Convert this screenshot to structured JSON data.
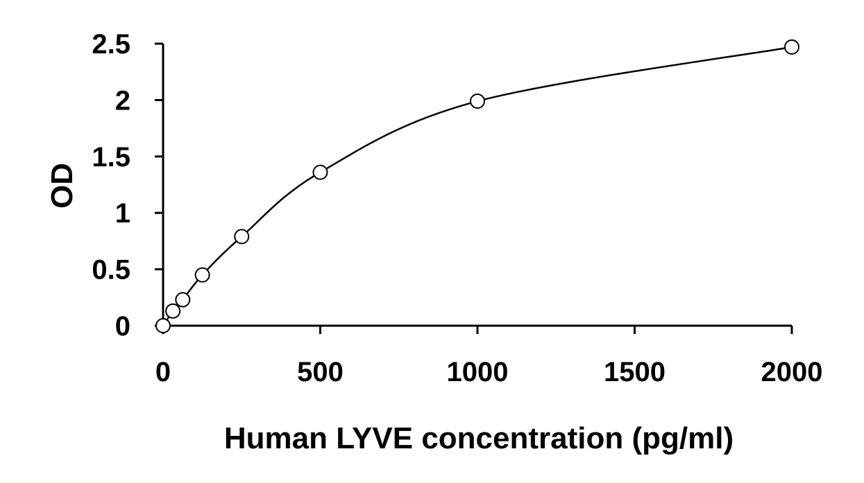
{
  "chart_data": {
    "type": "scatter",
    "title": "",
    "xlabel": "Human LYVE concentration (pg/ml)",
    "ylabel": "OD",
    "xlim": [
      0,
      2000
    ],
    "ylim": [
      0,
      2.5
    ],
    "x_ticks": [
      "0",
      "500",
      "1000",
      "1500",
      "2000"
    ],
    "y_ticks": [
      "0",
      "0.5",
      "1",
      "1.5",
      "2",
      "2.5"
    ],
    "grid": false,
    "legend": "none",
    "series": [
      {
        "x": [
          0,
          31.25,
          62.5,
          125,
          250,
          500,
          1000,
          2000
        ],
        "y": [
          0.0,
          0.13,
          0.23,
          0.45,
          0.79,
          1.36,
          1.99,
          2.47
        ],
        "marker": "open-circle",
        "fit_line": "smooth-curve"
      }
    ],
    "colors": {
      "line": "#000000",
      "marker_fill": "#ffffff",
      "marker_stroke": "#000000"
    }
  }
}
